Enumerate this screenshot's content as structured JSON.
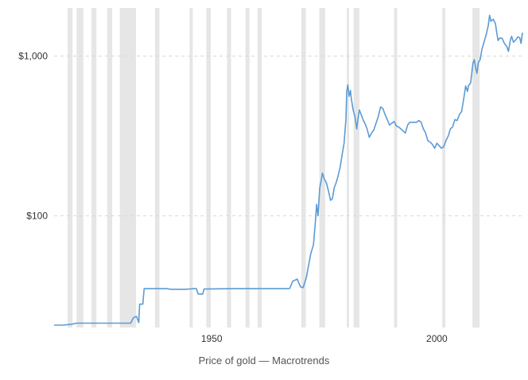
{
  "caption": "Price of gold — Macrotrends",
  "chart_data": {
    "type": "line",
    "y_scale": "log",
    "ylim": [
      20,
      2000
    ],
    "xlim": [
      1915,
      2019
    ],
    "y_ticks": [
      {
        "value": 100,
        "label": "$100"
      },
      {
        "value": 1000,
        "label": "$1,000"
      }
    ],
    "x_ticks": [
      {
        "value": 1950,
        "label": "1950"
      },
      {
        "value": 2000,
        "label": "2000"
      }
    ],
    "grid": "horizontal-dashed",
    "line_color": "#5b9bd5",
    "band_color": "#e6e6e6",
    "shaded_periods": [
      [
        1918.0,
        1919.1
      ],
      [
        1920.0,
        1921.5
      ],
      [
        1923.3,
        1924.4
      ],
      [
        1926.8,
        1927.9
      ],
      [
        1929.6,
        1933.2
      ],
      [
        1937.4,
        1938.4
      ],
      [
        1945.1,
        1945.8
      ],
      [
        1948.8,
        1949.8
      ],
      [
        1953.4,
        1954.3
      ],
      [
        1957.5,
        1958.4
      ],
      [
        1960.2,
        1961.1
      ],
      [
        1969.9,
        1970.9
      ],
      [
        1973.9,
        1975.2
      ],
      [
        1980.0,
        1980.5
      ],
      [
        1981.5,
        1982.8
      ],
      [
        1990.5,
        1991.2
      ],
      [
        2001.2,
        2001.9
      ],
      [
        2007.9,
        2009.5
      ]
    ],
    "series": [
      {
        "points": [
          [
            1915,
            20.7
          ],
          [
            1917,
            20.7
          ],
          [
            1919,
            21.0
          ],
          [
            1920,
            21.3
          ],
          [
            1924,
            21.3
          ],
          [
            1932,
            21.3
          ],
          [
            1932.6,
            23.0
          ],
          [
            1933.3,
            23.5
          ],
          [
            1933.8,
            21.5
          ],
          [
            1934.0,
            28
          ],
          [
            1934.7,
            28
          ],
          [
            1935.0,
            35.0
          ],
          [
            1940,
            35.0
          ],
          [
            1941,
            34.7
          ],
          [
            1944,
            34.7
          ],
          [
            1945,
            34.8
          ],
          [
            1946,
            35.0
          ],
          [
            1946.6,
            35.0
          ],
          [
            1947.0,
            32.4
          ],
          [
            1948,
            32.4
          ],
          [
            1948.3,
            34.8
          ],
          [
            1955,
            35.0
          ],
          [
            1960,
            35.0
          ],
          [
            1966.5,
            35.0
          ],
          [
            1967.3,
            35.1
          ],
          [
            1968.0,
            39.0
          ],
          [
            1969.0,
            40.2
          ],
          [
            1969.7,
            36.0
          ],
          [
            1970.3,
            35.5
          ],
          [
            1971.0,
            41.0
          ],
          [
            1972.0,
            58.0
          ],
          [
            1972.6,
            66.0
          ],
          [
            1973.0,
            90
          ],
          [
            1973.3,
            118
          ],
          [
            1973.6,
            100
          ],
          [
            1974.0,
            150
          ],
          [
            1974.3,
            165
          ],
          [
            1974.6,
            185
          ],
          [
            1975.0,
            170
          ],
          [
            1975.5,
            160
          ],
          [
            1976.0,
            140
          ],
          [
            1976.4,
            125
          ],
          [
            1976.8,
            128
          ],
          [
            1977.2,
            150
          ],
          [
            1977.6,
            160
          ],
          [
            1978.0,
            175
          ],
          [
            1978.5,
            200
          ],
          [
            1979.0,
            245
          ],
          [
            1979.4,
            285
          ],
          [
            1979.8,
            400
          ],
          [
            1980.0,
            600
          ],
          [
            1980.2,
            660
          ],
          [
            1980.5,
            560
          ],
          [
            1980.8,
            610
          ],
          [
            1981.0,
            540
          ],
          [
            1981.4,
            460
          ],
          [
            1981.8,
            420
          ],
          [
            1982.2,
            350
          ],
          [
            1982.5,
            410
          ],
          [
            1982.8,
            460
          ],
          [
            1983.2,
            430
          ],
          [
            1983.6,
            400
          ],
          [
            1984.0,
            380
          ],
          [
            1984.5,
            350
          ],
          [
            1985.0,
            310
          ],
          [
            1985.5,
            330
          ],
          [
            1986.0,
            345
          ],
          [
            1986.5,
            380
          ],
          [
            1987.0,
            420
          ],
          [
            1987.5,
            480
          ],
          [
            1988.0,
            470
          ],
          [
            1988.5,
            430
          ],
          [
            1989.0,
            400
          ],
          [
            1989.5,
            370
          ],
          [
            1990.0,
            380
          ],
          [
            1990.5,
            390
          ],
          [
            1991.0,
            365
          ],
          [
            1991.5,
            360
          ],
          [
            1992.0,
            350
          ],
          [
            1992.5,
            340
          ],
          [
            1993.0,
            330
          ],
          [
            1993.5,
            370
          ],
          [
            1994.0,
            385
          ],
          [
            1994.5,
            385
          ],
          [
            1995.0,
            385
          ],
          [
            1995.5,
            385
          ],
          [
            1996.0,
            395
          ],
          [
            1996.5,
            385
          ],
          [
            1997.0,
            350
          ],
          [
            1997.5,
            330
          ],
          [
            1998.0,
            295
          ],
          [
            1998.5,
            290
          ],
          [
            1999.0,
            280
          ],
          [
            1999.5,
            265
          ],
          [
            2000.0,
            285
          ],
          [
            2000.5,
            275
          ],
          [
            2001.0,
            265
          ],
          [
            2001.5,
            270
          ],
          [
            2002.0,
            295
          ],
          [
            2002.5,
            315
          ],
          [
            2003.0,
            350
          ],
          [
            2003.5,
            360
          ],
          [
            2004.0,
            400
          ],
          [
            2004.5,
            395
          ],
          [
            2005.0,
            430
          ],
          [
            2005.5,
            450
          ],
          [
            2006.0,
            550
          ],
          [
            2006.4,
            650
          ],
          [
            2006.8,
            600
          ],
          [
            2007.0,
            650
          ],
          [
            2007.5,
            680
          ],
          [
            2008.0,
            900
          ],
          [
            2008.3,
            950
          ],
          [
            2008.6,
            850
          ],
          [
            2008.9,
            780
          ],
          [
            2009.2,
            910
          ],
          [
            2009.6,
            950
          ],
          [
            2010.0,
            1100
          ],
          [
            2010.5,
            1230
          ],
          [
            2011.0,
            1380
          ],
          [
            2011.4,
            1550
          ],
          [
            2011.7,
            1800
          ],
          [
            2012.0,
            1650
          ],
          [
            2012.5,
            1700
          ],
          [
            2013.0,
            1600
          ],
          [
            2013.3,
            1400
          ],
          [
            2013.6,
            1250
          ],
          [
            2014.0,
            1300
          ],
          [
            2014.5,
            1290
          ],
          [
            2015.0,
            1200
          ],
          [
            2015.5,
            1150
          ],
          [
            2015.9,
            1070
          ],
          [
            2016.3,
            1250
          ],
          [
            2016.6,
            1330
          ],
          [
            2017.0,
            1220
          ],
          [
            2017.5,
            1260
          ],
          [
            2018.0,
            1320
          ],
          [
            2018.4,
            1300
          ],
          [
            2018.7,
            1200
          ],
          [
            2019.0,
            1400
          ]
        ]
      }
    ]
  }
}
